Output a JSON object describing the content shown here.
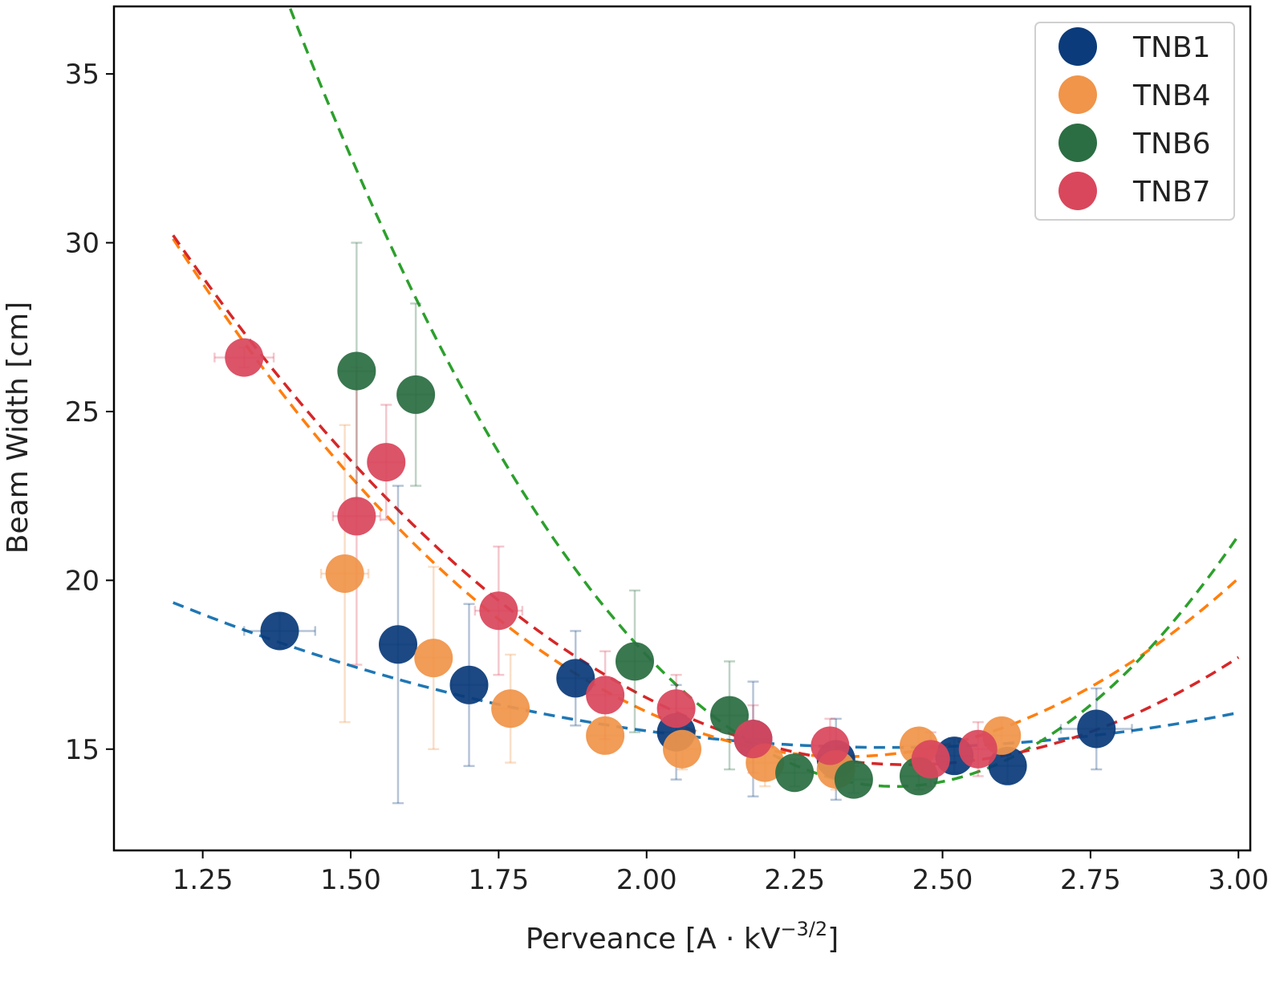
{
  "chart_data": {
    "type": "scatter",
    "title": "",
    "xlabel": "Perveance [A · kV",
    "xlabel_sup": "−3/2",
    "xlabel_end": "]",
    "ylabel": "Beam Width [cm]",
    "xlim": [
      1.1,
      3.02
    ],
    "ylim": [
      12.0,
      37.0
    ],
    "x_ticks": [
      1.25,
      1.5,
      1.75,
      2.0,
      2.25,
      2.5,
      2.75,
      3.0
    ],
    "x_tick_labels": [
      "1.25",
      "1.50",
      "1.75",
      "2.00",
      "2.25",
      "2.50",
      "2.75",
      "3.00"
    ],
    "y_ticks": [
      15,
      20,
      25,
      30,
      35
    ],
    "y_tick_labels": [
      "15",
      "20",
      "25",
      "30",
      "35"
    ],
    "grid": false,
    "legend_position": "top-right",
    "series": [
      {
        "name": "TNB1",
        "color": "#0b3b7a",
        "fit_color": "#1f77b4",
        "fit_coeffs": [
          2.94,
          -14.16,
          32.1
        ],
        "x": [
          1.38,
          1.58,
          1.7,
          1.88,
          2.05,
          2.18,
          2.32,
          2.52,
          2.61,
          2.76
        ],
        "y": [
          18.5,
          18.1,
          16.9,
          17.1,
          15.5,
          15.3,
          14.7,
          14.8,
          14.5,
          15.6
        ],
        "yerr": [
          0.5,
          4.7,
          2.4,
          1.4,
          1.4,
          1.7,
          1.2,
          0.5,
          0.5,
          1.2
        ],
        "xerr": [
          0.06,
          0.03,
          0.03,
          0.03,
          0.03,
          0.03,
          0.03,
          0.03,
          0.03,
          0.06
        ]
      },
      {
        "name": "TNB4",
        "color": "#f0954a",
        "fit_color": "#ff7f0e",
        "fit_coeffs": [
          11.92,
          -55.65,
          79.73
        ],
        "x": [
          1.49,
          1.64,
          1.77,
          1.93,
          2.06,
          2.2,
          2.32,
          2.46,
          2.6
        ],
        "y": [
          20.2,
          17.7,
          16.2,
          15.4,
          15.0,
          14.6,
          14.4,
          15.1,
          15.4
        ],
        "yerr": [
          4.4,
          2.7,
          1.6,
          0.5,
          0.6,
          0.7,
          0.6,
          0.5,
          0.5
        ],
        "xerr": [
          0.04,
          0.03,
          0.03,
          0.03,
          0.03,
          0.03,
          0.03,
          0.03,
          0.03
        ]
      },
      {
        "name": "TNB6",
        "color": "#2b6e43",
        "fit_color": "#2ca02c",
        "fit_coeffs": [
          22.07,
          -106.8,
          143.1
        ],
        "x": [
          1.51,
          1.61,
          1.98,
          2.14,
          2.25,
          2.35,
          2.46
        ],
        "y": [
          26.2,
          25.5,
          17.6,
          16.0,
          14.3,
          14.1,
          14.2
        ],
        "yerr": [
          3.8,
          2.7,
          2.1,
          1.6,
          0.4,
          0.4,
          0.4
        ],
        "xerr": [
          0.03,
          0.03,
          0.03,
          0.03,
          0.03,
          0.03,
          0.03
        ]
      },
      {
        "name": "TNB7",
        "color": "#d9475c",
        "fit_color": "#d62728",
        "fit_coeffs": [
          10.18,
          -49.7,
          75.2
        ],
        "x": [
          1.32,
          1.51,
          1.56,
          1.75,
          1.93,
          2.05,
          2.18,
          2.31,
          2.48,
          2.56
        ],
        "y": [
          26.6,
          21.9,
          23.5,
          19.1,
          16.6,
          16.2,
          15.3,
          15.1,
          14.7,
          15.0
        ],
        "yerr": [
          0.3,
          4.4,
          1.7,
          1.9,
          1.3,
          1.0,
          1.0,
          0.8,
          0.8,
          0.8
        ],
        "xerr": [
          0.05,
          0.04,
          0.03,
          0.04,
          0.03,
          0.03,
          0.03,
          0.03,
          0.03,
          0.03
        ]
      }
    ]
  }
}
